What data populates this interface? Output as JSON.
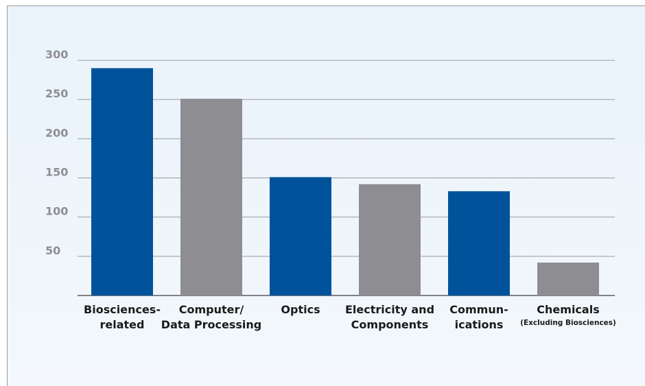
{
  "chart_data": {
    "type": "bar",
    "title": "",
    "xlabel": "",
    "ylabel": "",
    "ylim": [
      0,
      300
    ],
    "yticks": [
      50,
      100,
      150,
      200,
      250,
      300
    ],
    "grid": true,
    "categories": [
      {
        "lines": [
          "Biosciences-",
          "related"
        ],
        "subtitle": ""
      },
      {
        "lines": [
          "Computer/",
          "Data Processing"
        ],
        "subtitle": ""
      },
      {
        "lines": [
          "Optics"
        ],
        "subtitle": ""
      },
      {
        "lines": [
          "Electricity and",
          "Components"
        ],
        "subtitle": ""
      },
      {
        "lines": [
          "Commun-",
          "ications"
        ],
        "subtitle": ""
      },
      {
        "lines": [
          "Chemicals"
        ],
        "subtitle": "(Excluding Biosciences)"
      }
    ],
    "values": [
      290,
      251,
      151,
      142,
      133,
      42
    ],
    "colors": [
      "#00539b",
      "#8e8d91",
      "#00539b",
      "#8e8d91",
      "#00539b",
      "#8e8d91"
    ],
    "colors_legend": {
      "blue": "#00539b",
      "gray": "#8e8d91",
      "grid": "#9a9aa0",
      "tick_text": "#8e8e92"
    }
  }
}
